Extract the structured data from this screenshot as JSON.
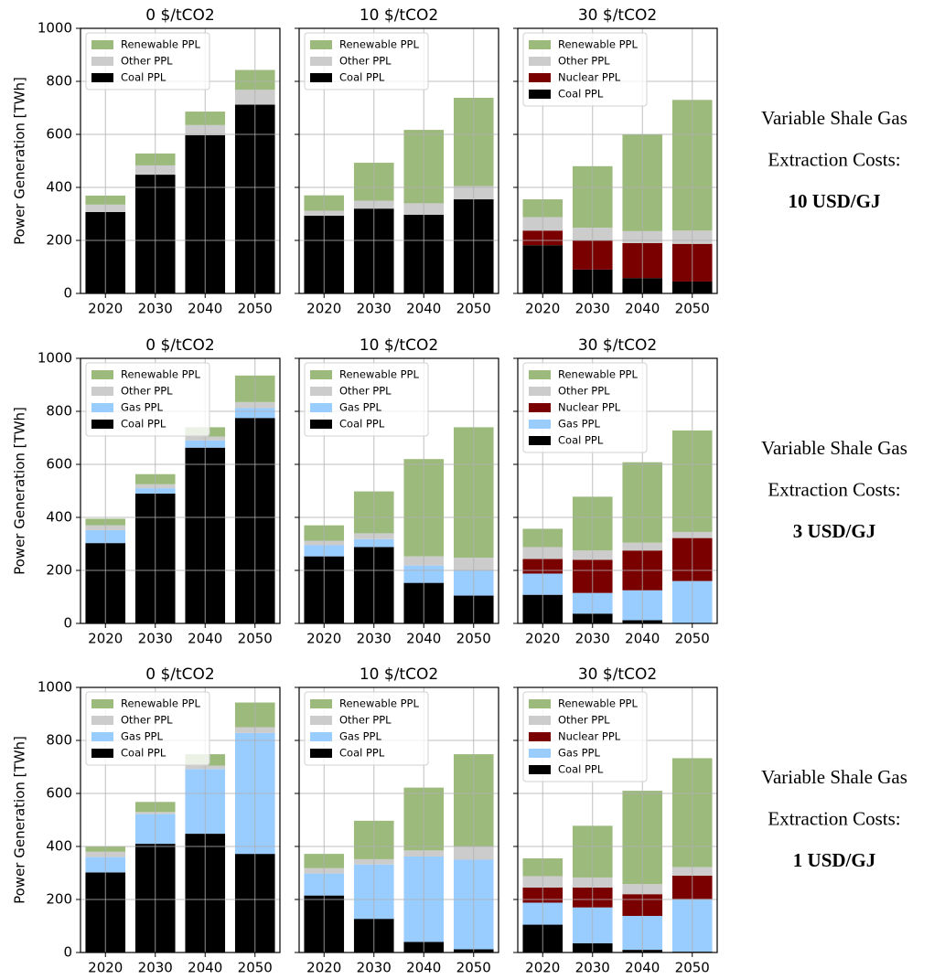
{
  "chart_data": [
    {
      "type": "bar",
      "stacked": true,
      "title": "0 $/tCO2",
      "ylabel": "Power Generation [TWh]",
      "categories": [
        "2020",
        "2030",
        "2040",
        "2050"
      ],
      "series": [
        {
          "name": "Coal PPL",
          "color": "#000000",
          "values": [
            307,
            448,
            597,
            712
          ]
        },
        {
          "name": "Other PPL",
          "color": "#cccccc",
          "values": [
            28,
            35,
            38,
            56
          ]
        },
        {
          "name": "Renewable PPL",
          "color": "#9dba7d",
          "values": [
            34,
            45,
            51,
            75
          ]
        }
      ],
      "ylim": [
        0,
        1000
      ],
      "yticks": [
        0,
        200,
        400,
        600,
        800,
        1000
      ],
      "grid": true,
      "legend": "upper left"
    },
    {
      "type": "bar",
      "stacked": true,
      "title": "10 $/tCO2",
      "categories": [
        "2020",
        "2030",
        "2040",
        "2050"
      ],
      "series": [
        {
          "name": "Coal PPL",
          "color": "#000000",
          "values": [
            293,
            320,
            297,
            355
          ]
        },
        {
          "name": "Other PPL",
          "color": "#cccccc",
          "values": [
            19,
            30,
            43,
            50
          ]
        },
        {
          "name": "Renewable PPL",
          "color": "#9dba7d",
          "values": [
            58,
            143,
            277,
            333
          ]
        }
      ],
      "ylim": [
        0,
        1000
      ],
      "yticks": [
        0,
        200,
        400,
        600,
        800,
        1000
      ],
      "grid": true,
      "legend": "upper left"
    },
    {
      "type": "bar",
      "stacked": true,
      "title": "30 $/tCO2",
      "categories": [
        "2020",
        "2030",
        "2040",
        "2050"
      ],
      "series": [
        {
          "name": "Coal PPL",
          "color": "#000000",
          "values": [
            182,
            90,
            58,
            45
          ]
        },
        {
          "name": "Nuclear PPL",
          "color": "#7a0000",
          "values": [
            55,
            110,
            132,
            142
          ]
        },
        {
          "name": "Other PPL",
          "color": "#cccccc",
          "values": [
            51,
            48,
            45,
            50
          ]
        },
        {
          "name": "Renewable PPL",
          "color": "#9dba7d",
          "values": [
            67,
            232,
            365,
            493
          ]
        }
      ],
      "ylim": [
        0,
        1000
      ],
      "yticks": [
        0,
        200,
        400,
        600,
        800,
        1000
      ],
      "grid": true,
      "legend": "upper left",
      "annotation": [
        "Variable Shale Gas",
        "Extraction Costs:",
        "10 USD/GJ"
      ]
    },
    {
      "type": "bar",
      "stacked": true,
      "title": "0 $/tCO2",
      "ylabel": "Power Generation [TWh]",
      "categories": [
        "2020",
        "2030",
        "2040",
        "2050"
      ],
      "series": [
        {
          "name": "Coal PPL",
          "color": "#000000",
          "values": [
            303,
            490,
            663,
            775
          ]
        },
        {
          "name": "Gas PPL",
          "color": "#99ccff",
          "values": [
            49,
            20,
            27,
            37
          ]
        },
        {
          "name": "Other PPL",
          "color": "#cccccc",
          "values": [
            18,
            15,
            15,
            23
          ]
        },
        {
          "name": "Renewable PPL",
          "color": "#9dba7d",
          "values": [
            25,
            38,
            35,
            100
          ]
        }
      ],
      "ylim": [
        0,
        1000
      ],
      "yticks": [
        0,
        200,
        400,
        600,
        800,
        1000
      ],
      "grid": true,
      "legend": "upper left"
    },
    {
      "type": "bar",
      "stacked": true,
      "title": "10 $/tCO2",
      "categories": [
        "2020",
        "2030",
        "2040",
        "2050"
      ],
      "series": [
        {
          "name": "Coal PPL",
          "color": "#000000",
          "values": [
            253,
            288,
            153,
            105
          ]
        },
        {
          "name": "Gas PPL",
          "color": "#99ccff",
          "values": [
            42,
            30,
            65,
            95
          ]
        },
        {
          "name": "Other PPL",
          "color": "#cccccc",
          "values": [
            17,
            22,
            35,
            48
          ]
        },
        {
          "name": "Renewable PPL",
          "color": "#9dba7d",
          "values": [
            58,
            158,
            367,
            492
          ]
        }
      ],
      "ylim": [
        0,
        1000
      ],
      "yticks": [
        0,
        200,
        400,
        600,
        800,
        1000
      ],
      "grid": true,
      "legend": "upper left"
    },
    {
      "type": "bar",
      "stacked": true,
      "title": "30 $/tCO2",
      "categories": [
        "2020",
        "2030",
        "2040",
        "2050"
      ],
      "series": [
        {
          "name": "Coal PPL",
          "color": "#000000",
          "values": [
            108,
            37,
            12,
            0
          ]
        },
        {
          "name": "Gas PPL",
          "color": "#99ccff",
          "values": [
            80,
            78,
            113,
            160
          ]
        },
        {
          "name": "Nuclear PPL",
          "color": "#7a0000",
          "values": [
            55,
            125,
            150,
            162
          ]
        },
        {
          "name": "Other PPL",
          "color": "#cccccc",
          "values": [
            45,
            35,
            30,
            23
          ]
        },
        {
          "name": "Renewable PPL",
          "color": "#9dba7d",
          "values": [
            69,
            203,
            303,
            383
          ]
        }
      ],
      "ylim": [
        0,
        1000
      ],
      "yticks": [
        0,
        200,
        400,
        600,
        800,
        1000
      ],
      "grid": true,
      "legend": "upper left",
      "annotation": [
        "Variable Shale Gas",
        "Extraction Costs:",
        "3 USD/GJ"
      ]
    },
    {
      "type": "bar",
      "stacked": true,
      "title": "0 $/tCO2",
      "ylabel": "Power Generation [TWh]",
      "categories": [
        "2020",
        "2030",
        "2040",
        "2050"
      ],
      "series": [
        {
          "name": "Coal PPL",
          "color": "#000000",
          "values": [
            302,
            410,
            448,
            372
          ]
        },
        {
          "name": "Gas PPL",
          "color": "#99ccff",
          "values": [
            58,
            112,
            244,
            456
          ]
        },
        {
          "name": "Other PPL",
          "color": "#cccccc",
          "values": [
            20,
            8,
            13,
            22
          ]
        },
        {
          "name": "Renewable PPL",
          "color": "#9dba7d",
          "values": [
            20,
            38,
            43,
            93
          ]
        }
      ],
      "ylim": [
        0,
        1000
      ],
      "yticks": [
        0,
        200,
        400,
        600,
        800,
        1000
      ],
      "grid": true,
      "legend": "upper left"
    },
    {
      "type": "bar",
      "stacked": true,
      "title": "10 $/tCO2",
      "categories": [
        "2020",
        "2030",
        "2040",
        "2050"
      ],
      "series": [
        {
          "name": "Coal PPL",
          "color": "#000000",
          "values": [
            215,
            127,
            40,
            12
          ]
        },
        {
          "name": "Gas PPL",
          "color": "#99ccff",
          "values": [
            83,
            205,
            322,
            338
          ]
        },
        {
          "name": "Other PPL",
          "color": "#cccccc",
          "values": [
            20,
            20,
            23,
            50
          ]
        },
        {
          "name": "Renewable PPL",
          "color": "#9dba7d",
          "values": [
            54,
            145,
            237,
            348
          ]
        }
      ],
      "ylim": [
        0,
        1000
      ],
      "yticks": [
        0,
        200,
        400,
        600,
        800,
        1000
      ],
      "grid": true,
      "legend": "upper left"
    },
    {
      "type": "bar",
      "stacked": true,
      "title": "30 $/tCO2",
      "categories": [
        "2020",
        "2030",
        "2040",
        "2050"
      ],
      "series": [
        {
          "name": "Coal PPL",
          "color": "#000000",
          "values": [
            105,
            35,
            10,
            3
          ]
        },
        {
          "name": "Gas PPL",
          "color": "#99ccff",
          "values": [
            83,
            135,
            128,
            199
          ]
        },
        {
          "name": "Nuclear PPL",
          "color": "#7a0000",
          "values": [
            57,
            75,
            82,
            88
          ]
        },
        {
          "name": "Other PPL",
          "color": "#cccccc",
          "values": [
            43,
            38,
            38,
            32
          ]
        },
        {
          "name": "Renewable PPL",
          "color": "#9dba7d",
          "values": [
            67,
            195,
            352,
            411
          ]
        }
      ],
      "ylim": [
        0,
        1000
      ],
      "yticks": [
        0,
        200,
        400,
        600,
        800,
        1000
      ],
      "grid": true,
      "legend": "upper left",
      "annotation": [
        "Variable Shale Gas",
        "Extraction Costs:",
        "1 USD/GJ"
      ]
    }
  ]
}
